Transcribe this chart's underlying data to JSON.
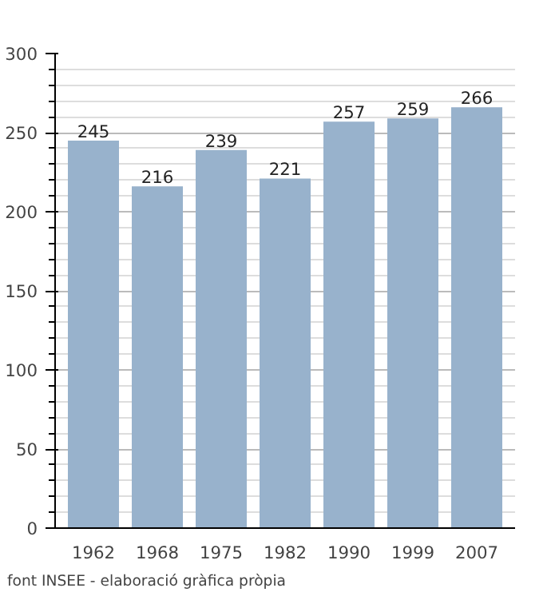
{
  "chart_data": {
    "type": "bar",
    "categories": [
      "1962",
      "1968",
      "1975",
      "1982",
      "1990",
      "1999",
      "2007"
    ],
    "values": [
      245,
      216,
      239,
      221,
      257,
      259,
      266
    ],
    "color": "#98b2cc",
    "ylim": [
      0,
      300
    ],
    "yticks": [
      0,
      50,
      100,
      150,
      200,
      250,
      300
    ],
    "grid": "y",
    "data_labels": true,
    "annotations": [
      "font INSEE - elaboració gràfica pròpia"
    ]
  }
}
